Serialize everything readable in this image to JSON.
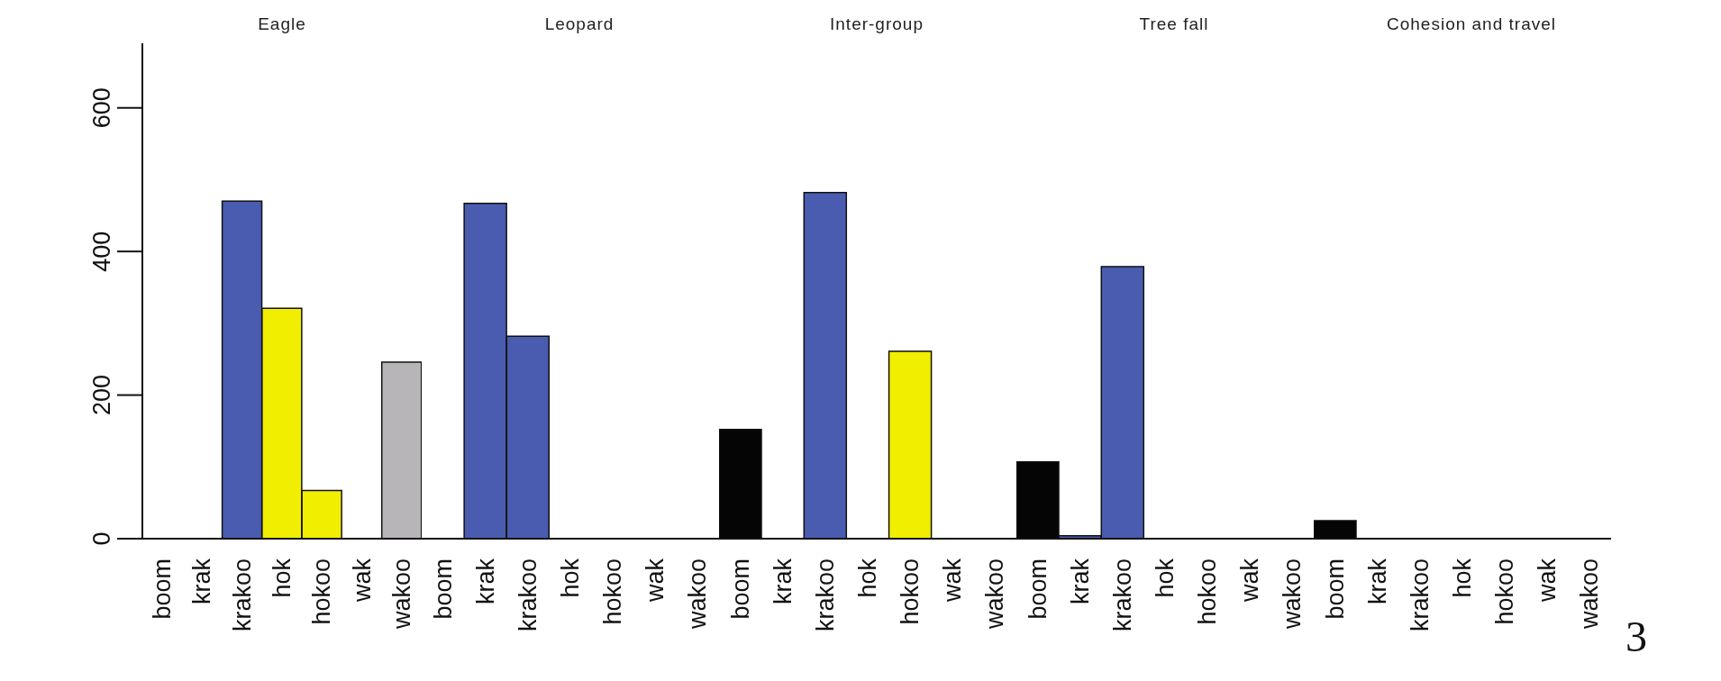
{
  "chart_data": [
    {
      "type": "bar",
      "title": "Eagle",
      "categories": [
        "boom",
        "krak",
        "krakoo",
        "hok",
        "hokoo",
        "wak",
        "wakoo"
      ],
      "values": [
        0,
        0,
        470,
        321,
        67,
        0,
        246
      ],
      "colors": [
        "#050505",
        "#4a5cb0",
        "#4a5cb0",
        "#f2ee00",
        "#f2ee00",
        "#b8b5b8",
        "#b8b5b8"
      ],
      "ylim": [
        0,
        690
      ],
      "yticks": [
        0,
        200,
        400,
        600
      ]
    },
    {
      "type": "bar",
      "title": "Leopard",
      "categories": [
        "boom",
        "krak",
        "krakoo",
        "hok",
        "hokoo",
        "wak",
        "wakoo"
      ],
      "values": [
        0,
        467,
        282,
        0,
        0,
        0,
        0
      ],
      "colors": [
        "#050505",
        "#4a5cb0",
        "#4a5cb0",
        "#f2ee00",
        "#f2ee00",
        "#b8b5b8",
        "#b8b5b8"
      ],
      "yticks": [
        0,
        200,
        400,
        600
      ],
      "tick_labels": "x"
    },
    {
      "type": "bar",
      "title": "Inter-group",
      "categories": [
        "boom",
        "krak",
        "krakoo",
        "hok",
        "hokoo",
        "wak",
        "wakoo"
      ],
      "values": [
        152,
        0,
        482,
        0,
        261,
        0,
        0
      ],
      "colors": [
        "#050505",
        "#4a5cb0",
        "#4a5cb0",
        "#f2ee00",
        "#f2ee00",
        "#b8b5b8",
        "#b8b5b8"
      ],
      "yticks": [
        0,
        200,
        400,
        600
      ],
      "tick_labels": "x"
    },
    {
      "type": "bar",
      "title": "Tree fall",
      "categories": [
        "boom",
        "krak",
        "krakoo",
        "hok",
        "hokoo",
        "wak",
        "wakoo"
      ],
      "values": [
        107,
        4,
        379,
        0,
        0,
        0,
        0
      ],
      "colors": [
        "#050505",
        "#4a5cb0",
        "#4a5cb0",
        "#f2ee00",
        "#f2ee00",
        "#b8b5b8",
        "#b8b5b8"
      ],
      "yticks": [
        0,
        200,
        400,
        600
      ],
      "tick_labels": "x"
    },
    {
      "type": "bar",
      "title": "Cohesion and travel",
      "categories": [
        "boom",
        "krak",
        "krakoo",
        "hok",
        "hokoo",
        "wak",
        "wakoo"
      ],
      "values": [
        25,
        0,
        0,
        0,
        0,
        0,
        0
      ],
      "colors": [
        "#050505",
        "#4a5cb0",
        "#4a5cb0",
        "#f2ee00",
        "#f2ee00",
        "#b8b5b8",
        "#b8b5b8"
      ],
      "yticks": [
        0,
        200,
        400,
        600
      ],
      "tick_labels": "x",
      "annotations": [
        "3"
      ]
    }
  ]
}
